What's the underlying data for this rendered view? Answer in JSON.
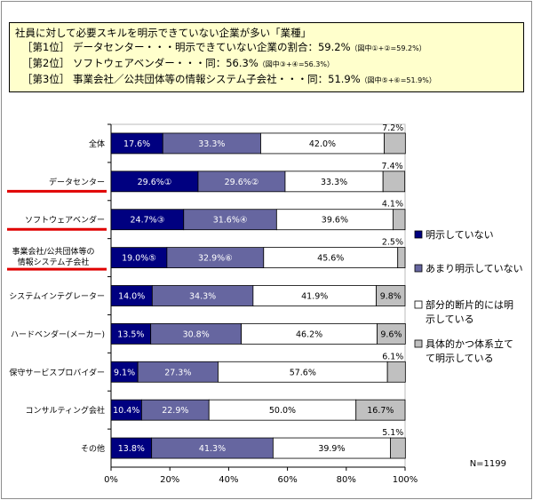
{
  "header": {
    "lines": [
      {
        "text": "社員に対して必要スキルを明示できていない企業が多い「業種」",
        "note": ""
      },
      {
        "text": "［第1位］ データセンター・・・明示できていない企業の割合：59.2%",
        "note": "（図中①+②=59.2%）"
      },
      {
        "text": "［第2位］ ソフトウェアベンダー・・・同：56.3%",
        "note": "（図中③+④=56.3%）"
      },
      {
        "text": "［第3位］ 事業会社／公共団体等の情報システム子会社・・・同：51.9%",
        "note": "（図中⑤+⑥=51.9%）"
      }
    ]
  },
  "chart_data": {
    "type": "bar",
    "orientation": "horizontal",
    "stacked": "percent",
    "categories": [
      "全体",
      "データセンター",
      "ソフトウェアベンダー",
      "事業会社/公共団体等の情報システム子会社",
      "システムインテグレーター",
      "ハードベンダー(メーカー)",
      "保守サービスプロバイダー",
      "コンサルティング会社",
      "その他"
    ],
    "series": [
      {
        "name": "明示していない",
        "color": "#000080",
        "text_color": "#ffffff",
        "values": [
          17.6,
          29.6,
          24.7,
          19.0,
          14.0,
          13.5,
          9.1,
          10.4,
          13.8
        ],
        "labels": [
          "17.6%",
          "29.6%①",
          "24.7%③",
          "19.0%⑤",
          "14.0%",
          "13.5%",
          "9.1%",
          "10.4%",
          "13.8%"
        ]
      },
      {
        "name": "あまり明示していない",
        "color": "#6666a0",
        "text_color": "#ffffff",
        "values": [
          33.3,
          29.6,
          31.6,
          32.9,
          34.3,
          30.8,
          27.3,
          22.9,
          41.3
        ],
        "labels": [
          "33.3%",
          "29.6%②",
          "31.6%④",
          "32.9%⑥",
          "34.3%",
          "30.8%",
          "27.3%",
          "22.9%",
          "41.3%"
        ]
      },
      {
        "name": "部分的断片的には明示している",
        "color": "#ffffff",
        "text_color": "#000000",
        "values": [
          42.0,
          33.3,
          39.6,
          45.6,
          41.9,
          46.2,
          57.6,
          50.0,
          39.9
        ],
        "labels": [
          "42.0%",
          "33.3%",
          "39.6%",
          "45.6%",
          "41.9%",
          "46.2%",
          "57.6%",
          "50.0%",
          "39.9%"
        ]
      },
      {
        "name": "具体的かつ体系立てて明示している",
        "color": "#c0c0c0",
        "text_color": "#000000",
        "values": [
          7.2,
          7.4,
          4.1,
          2.5,
          9.8,
          9.6,
          6.1,
          16.7,
          5.1
        ],
        "labels": [
          "7.2%",
          "7.4%",
          "4.1%",
          "2.5%",
          "9.8%",
          "9.6%",
          "6.1%",
          "16.7%",
          "5.1%"
        ]
      }
    ],
    "legend": {
      "position": "right",
      "items": [
        {
          "lines": [
            "明示していない"
          ]
        },
        {
          "lines": [
            "あまり明示していない"
          ]
        },
        {
          "lines": [
            "部分的断片的には明",
            "示している"
          ]
        },
        {
          "lines": [
            "具体的かつ体系立て",
            "て明示している"
          ]
        }
      ]
    },
    "highlight": {
      "categories": [
        "データセンター",
        "ソフトウェアベンダー",
        "事業会社/公共団体等の情報システム子会社"
      ],
      "color": "#e00000"
    },
    "xlim": [
      0,
      100
    ],
    "xticks": [
      "0%",
      "20%",
      "40%",
      "60%",
      "80%",
      "100%"
    ],
    "note": "N=1199",
    "grid": false
  }
}
